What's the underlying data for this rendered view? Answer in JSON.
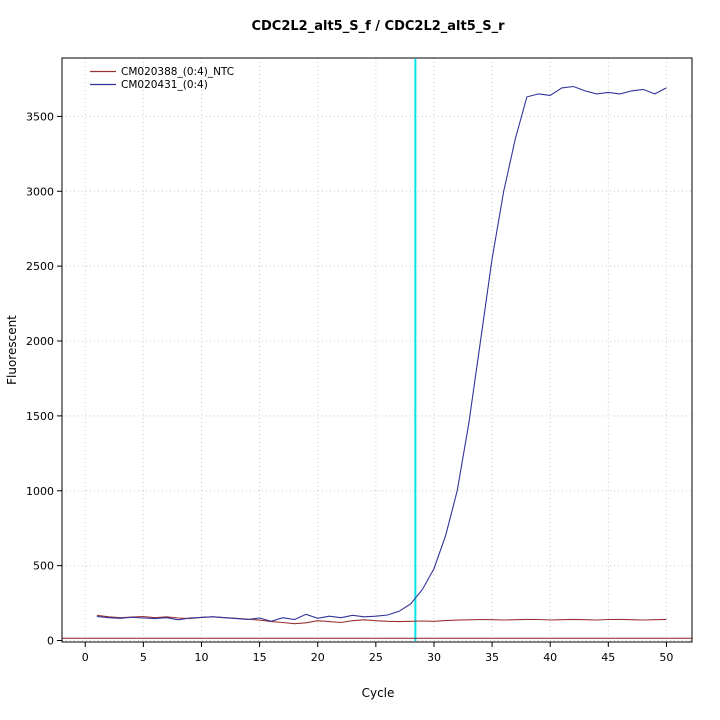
{
  "chart_data": {
    "type": "line",
    "title": "CDC2L2_alt5_S_f / CDC2L2_alt5_S_r",
    "xlabel": "Cycle",
    "ylabel": "Fluorescent",
    "xlim": [
      -2,
      52.2
    ],
    "ylim": [
      -10,
      3890
    ],
    "xticks": [
      0,
      5,
      10,
      15,
      20,
      25,
      30,
      35,
      40,
      45,
      50
    ],
    "yticks": [
      0,
      500,
      1000,
      1500,
      2000,
      2500,
      3000,
      3500
    ],
    "grid": "dotted",
    "legend_position": "top-left",
    "x_range": [
      1,
      50
    ],
    "series": [
      {
        "name": "CM020388_(0:4)_NTC",
        "color": "#993333",
        "values": [
          168,
          158,
          152,
          156,
          160,
          152,
          158,
          150,
          146,
          155,
          158,
          152,
          148,
          142,
          136,
          126,
          120,
          112,
          118,
          132,
          126,
          120,
          132,
          138,
          132,
          128,
          126,
          128,
          130,
          128,
          133,
          136,
          138,
          140,
          139,
          137,
          139,
          141,
          140,
          137,
          139,
          141,
          139,
          137,
          140,
          141,
          139,
          137,
          139,
          141
        ]
      },
      {
        "name": "CM020431_(0:4)",
        "color": "#333399",
        "values": [
          160,
          152,
          148,
          155,
          150,
          146,
          152,
          138,
          150,
          154,
          158,
          152,
          146,
          140,
          150,
          128,
          152,
          140,
          175,
          148,
          162,
          152,
          168,
          158,
          162,
          170,
          195,
          245,
          340,
          480,
          700,
          1000,
          1450,
          2000,
          2550,
          3000,
          3350,
          3630,
          3650,
          3640,
          3690,
          3700,
          3670,
          3650,
          3660,
          3650,
          3670,
          3680,
          3650,
          3690
        ]
      }
    ],
    "markers": {
      "threshold_cycle_line": {
        "x": 28.4,
        "color": "#00e6e6"
      },
      "baseline_line": {
        "y": 15,
        "color": "#8b2222"
      }
    }
  }
}
